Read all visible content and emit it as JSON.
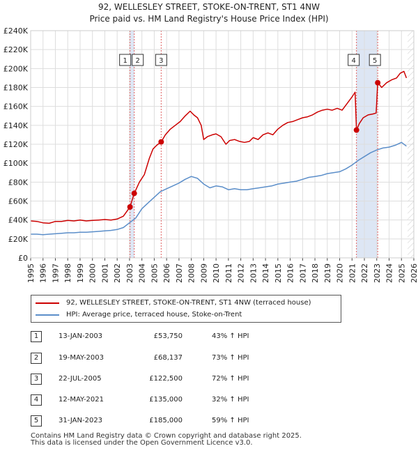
{
  "header": {
    "title_line1": "92, WELLESLEY STREET, STOKE-ON-TRENT, ST1 4NW",
    "title_line2": "Price paid vs. HM Land Registry's House Price Index (HPI)"
  },
  "colors": {
    "property": "#cc0000",
    "hpi": "#5b8ec9",
    "shade": "#dde6f4",
    "vline": "#e06060",
    "grid": "#dddddd"
  },
  "chart_data": {
    "type": "line",
    "title": "92, WELLESLEY STREET, STOKE-ON-TRENT, ST1 4NW",
    "subtitle": "Price paid vs. HM Land Registry's House Price Index (HPI)",
    "xlabel": "",
    "ylabel": "",
    "xlim": [
      1995,
      2026
    ],
    "ylim": [
      0,
      240000
    ],
    "grid": true,
    "x_ticks": [
      1995,
      1996,
      1997,
      1998,
      1999,
      2000,
      2001,
      2002,
      2003,
      2004,
      2005,
      2006,
      2007,
      2008,
      2009,
      2010,
      2011,
      2012,
      2013,
      2014,
      2015,
      2016,
      2017,
      2018,
      2019,
      2020,
      2021,
      2022,
      2023,
      2024,
      2025,
      2026
    ],
    "y_ticks": [
      0,
      20000,
      40000,
      60000,
      80000,
      100000,
      120000,
      140000,
      160000,
      180000,
      200000,
      220000,
      240000
    ],
    "y_tick_labels": [
      "£0",
      "£20K",
      "£40K",
      "£60K",
      "£80K",
      "£100K",
      "£120K",
      "£140K",
      "£160K",
      "£180K",
      "£200K",
      "£220K",
      "£240K"
    ],
    "shaded_ranges": [
      [
        2003.04,
        2003.38
      ],
      [
        2021.36,
        2023.08
      ]
    ],
    "future_hatch_from": 2025.5,
    "series": [
      {
        "name": "92, WELLESLEY STREET, STOKE-ON-TRENT, ST1 4NW (terraced house)",
        "color": "#cc0000",
        "points": [
          [
            1995.0,
            39000
          ],
          [
            1995.5,
            38500
          ],
          [
            1996.0,
            37000
          ],
          [
            1996.5,
            36500
          ],
          [
            1997.0,
            38500
          ],
          [
            1997.5,
            38500
          ],
          [
            1998.0,
            39500
          ],
          [
            1998.5,
            39000
          ],
          [
            1999.0,
            40000
          ],
          [
            1999.5,
            39000
          ],
          [
            2000.0,
            39500
          ],
          [
            2000.5,
            40000
          ],
          [
            2001.0,
            40500
          ],
          [
            2001.5,
            40000
          ],
          [
            2002.0,
            41000
          ],
          [
            2002.5,
            44000
          ],
          [
            2003.04,
            53750
          ],
          [
            2003.38,
            68137
          ],
          [
            2003.8,
            80000
          ],
          [
            2004.2,
            88000
          ],
          [
            2004.6,
            105000
          ],
          [
            2004.9,
            115000
          ],
          [
            2005.2,
            119000
          ],
          [
            2005.56,
            122500
          ],
          [
            2005.9,
            130000
          ],
          [
            2006.3,
            136000
          ],
          [
            2006.7,
            140000
          ],
          [
            2007.1,
            144000
          ],
          [
            2007.5,
            150000
          ],
          [
            2007.9,
            155000
          ],
          [
            2008.2,
            151000
          ],
          [
            2008.5,
            148000
          ],
          [
            2008.8,
            140000
          ],
          [
            2009.0,
            125000
          ],
          [
            2009.3,
            128000
          ],
          [
            2009.7,
            130000
          ],
          [
            2010.0,
            131000
          ],
          [
            2010.4,
            128000
          ],
          [
            2010.8,
            120000
          ],
          [
            2011.1,
            124000
          ],
          [
            2011.5,
            125000
          ],
          [
            2011.9,
            123000
          ],
          [
            2012.3,
            122000
          ],
          [
            2012.7,
            123000
          ],
          [
            2013.0,
            127000
          ],
          [
            2013.4,
            125000
          ],
          [
            2013.8,
            130000
          ],
          [
            2014.2,
            132000
          ],
          [
            2014.6,
            130000
          ],
          [
            2015.0,
            136000
          ],
          [
            2015.4,
            140000
          ],
          [
            2015.8,
            143000
          ],
          [
            2016.2,
            144000
          ],
          [
            2016.6,
            146000
          ],
          [
            2017.0,
            148000
          ],
          [
            2017.4,
            149000
          ],
          [
            2017.8,
            151000
          ],
          [
            2018.2,
            154000
          ],
          [
            2018.6,
            156000
          ],
          [
            2019.0,
            157000
          ],
          [
            2019.4,
            156000
          ],
          [
            2019.8,
            158000
          ],
          [
            2020.2,
            156000
          ],
          [
            2020.6,
            163000
          ],
          [
            2021.0,
            170000
          ],
          [
            2021.25,
            175000
          ],
          [
            2021.36,
            135000
          ],
          [
            2021.6,
            142000
          ],
          [
            2021.9,
            148000
          ],
          [
            2022.3,
            151000
          ],
          [
            2022.7,
            152000
          ],
          [
            2022.95,
            153000
          ],
          [
            2023.08,
            185000
          ],
          [
            2023.4,
            180000
          ],
          [
            2023.8,
            185000
          ],
          [
            2024.2,
            188000
          ],
          [
            2024.6,
            190000
          ],
          [
            2024.9,
            195000
          ],
          [
            2025.2,
            197000
          ],
          [
            2025.4,
            190000
          ]
        ]
      },
      {
        "name": "HPI: Average price, terraced house, Stoke-on-Trent",
        "color": "#5b8ec9",
        "points": [
          [
            1995.0,
            25000
          ],
          [
            1995.5,
            25000
          ],
          [
            1996.0,
            24500
          ],
          [
            1996.5,
            25000
          ],
          [
            1997.0,
            25500
          ],
          [
            1997.5,
            26000
          ],
          [
            1998.0,
            26500
          ],
          [
            1998.5,
            26500
          ],
          [
            1999.0,
            27000
          ],
          [
            1999.5,
            27000
          ],
          [
            2000.0,
            27500
          ],
          [
            2000.5,
            28000
          ],
          [
            2001.0,
            28500
          ],
          [
            2001.5,
            29000
          ],
          [
            2002.0,
            30000
          ],
          [
            2002.5,
            32000
          ],
          [
            2003.0,
            37000
          ],
          [
            2003.5,
            42000
          ],
          [
            2004.0,
            52000
          ],
          [
            2004.5,
            58000
          ],
          [
            2005.0,
            64000
          ],
          [
            2005.5,
            70000
          ],
          [
            2006.0,
            73000
          ],
          [
            2006.5,
            76000
          ],
          [
            2007.0,
            79000
          ],
          [
            2007.5,
            83000
          ],
          [
            2008.0,
            86000
          ],
          [
            2008.5,
            84000
          ],
          [
            2009.0,
            78000
          ],
          [
            2009.5,
            74000
          ],
          [
            2010.0,
            76000
          ],
          [
            2010.5,
            75000
          ],
          [
            2011.0,
            72000
          ],
          [
            2011.5,
            73000
          ],
          [
            2012.0,
            72000
          ],
          [
            2012.5,
            72000
          ],
          [
            2013.0,
            73000
          ],
          [
            2013.5,
            74000
          ],
          [
            2014.0,
            75000
          ],
          [
            2014.5,
            76000
          ],
          [
            2015.0,
            78000
          ],
          [
            2015.5,
            79000
          ],
          [
            2016.0,
            80000
          ],
          [
            2016.5,
            81000
          ],
          [
            2017.0,
            83000
          ],
          [
            2017.5,
            85000
          ],
          [
            2018.0,
            86000
          ],
          [
            2018.5,
            87000
          ],
          [
            2019.0,
            89000
          ],
          [
            2019.5,
            90000
          ],
          [
            2020.0,
            91000
          ],
          [
            2020.5,
            94000
          ],
          [
            2021.0,
            98000
          ],
          [
            2021.5,
            103000
          ],
          [
            2022.0,
            107000
          ],
          [
            2022.5,
            111000
          ],
          [
            2023.0,
            114000
          ],
          [
            2023.5,
            116000
          ],
          [
            2024.0,
            117000
          ],
          [
            2024.5,
            119000
          ],
          [
            2025.0,
            122000
          ],
          [
            2025.4,
            118000
          ]
        ]
      }
    ],
    "sale_markers": [
      {
        "label": "1",
        "x": 2003.04,
        "y": 53750
      },
      {
        "label": "2",
        "x": 2003.38,
        "y": 68137
      },
      {
        "label": "3",
        "x": 2005.56,
        "y": 122500
      },
      {
        "label": "4",
        "x": 2021.36,
        "y": 135000
      },
      {
        "label": "5",
        "x": 2023.08,
        "y": 185000
      }
    ]
  },
  "legend": {
    "property_label": "92, WELLESLEY STREET, STOKE-ON-TRENT, ST1 4NW (terraced house)",
    "hpi_label": "HPI: Average price, terraced house, Stoke-on-Trent"
  },
  "transactions": [
    {
      "num": "1",
      "date": "13-JAN-2003",
      "price": "£53,750",
      "hpi": "43% ↑ HPI"
    },
    {
      "num": "2",
      "date": "19-MAY-2003",
      "price": "£68,137",
      "hpi": "73% ↑ HPI"
    },
    {
      "num": "3",
      "date": "22-JUL-2005",
      "price": "£122,500",
      "hpi": "72% ↑ HPI"
    },
    {
      "num": "4",
      "date": "12-MAY-2021",
      "price": "£135,000",
      "hpi": "32% ↑ HPI"
    },
    {
      "num": "5",
      "date": "31-JAN-2023",
      "price": "£185,000",
      "hpi": "59% ↑ HPI"
    }
  ],
  "footer": {
    "line1": "Contains HM Land Registry data © Crown copyright and database right 2025.",
    "line2": "This data is licensed under the Open Government Licence v3.0."
  }
}
